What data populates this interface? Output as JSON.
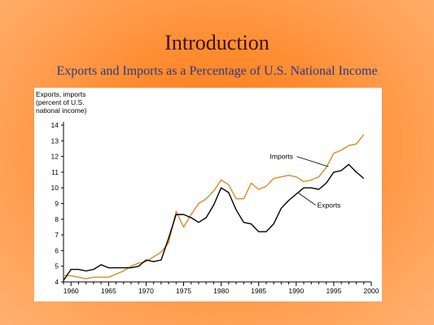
{
  "slide": {
    "title": "Introduction",
    "subtitle": "Exports and Imports as a Percentage of U.S. National Income"
  },
  "colors": {
    "imports_line": "#d98a2b",
    "exports_line": "#000000",
    "background_accent": "#ff7a1a",
    "subtitle_text": "#2a3a86"
  },
  "chart_data": {
    "type": "line",
    "title": "",
    "ylabel_lines": [
      "Exports, imports",
      "(percent of U.S.",
      "national income)"
    ],
    "xlabel": "",
    "xlim": [
      1959,
      2000
    ],
    "ylim": [
      4,
      14
    ],
    "x_ticks": [
      1960,
      1965,
      1970,
      1975,
      1980,
      1985,
      1990,
      1995,
      2000
    ],
    "y_ticks": [
      4,
      5,
      6,
      7,
      8,
      9,
      10,
      11,
      12,
      13,
      14
    ],
    "grid": false,
    "x": [
      1959,
      1960,
      1961,
      1962,
      1963,
      1964,
      1965,
      1966,
      1967,
      1968,
      1969,
      1970,
      1971,
      1972,
      1973,
      1974,
      1975,
      1976,
      1977,
      1978,
      1979,
      1980,
      1981,
      1982,
      1983,
      1984,
      1985,
      1986,
      1987,
      1988,
      1989,
      1990,
      1991,
      1992,
      1993,
      1994,
      1995,
      1996,
      1997,
      1998,
      1999
    ],
    "series": [
      {
        "name": "Imports",
        "values": [
          4.4,
          4.4,
          4.3,
          4.2,
          4.3,
          4.3,
          4.3,
          4.5,
          4.7,
          5.0,
          5.2,
          5.3,
          5.6,
          5.9,
          6.5,
          8.5,
          7.5,
          8.3,
          9.0,
          9.3,
          9.8,
          10.5,
          10.2,
          9.3,
          9.3,
          10.3,
          9.9,
          10.1,
          10.6,
          10.7,
          10.8,
          10.7,
          10.4,
          10.5,
          10.7,
          11.3,
          12.2,
          12.4,
          12.7,
          12.8,
          13.4
        ]
      },
      {
        "name": "Exports",
        "values": [
          4.1,
          4.8,
          4.8,
          4.7,
          4.8,
          5.1,
          4.9,
          4.9,
          4.9,
          4.9,
          5.0,
          5.4,
          5.3,
          5.4,
          6.8,
          8.3,
          8.3,
          8.1,
          7.8,
          8.1,
          8.9,
          10.0,
          9.7,
          8.6,
          7.8,
          7.7,
          7.2,
          7.2,
          7.7,
          8.7,
          9.2,
          9.6,
          10.0,
          10.0,
          9.9,
          10.3,
          11.0,
          11.1,
          11.5,
          11.0,
          10.6
        ]
      }
    ],
    "annotations": [
      {
        "text": "Imports",
        "for_series": "Imports"
      },
      {
        "text": "Exports",
        "for_series": "Exports"
      }
    ]
  }
}
